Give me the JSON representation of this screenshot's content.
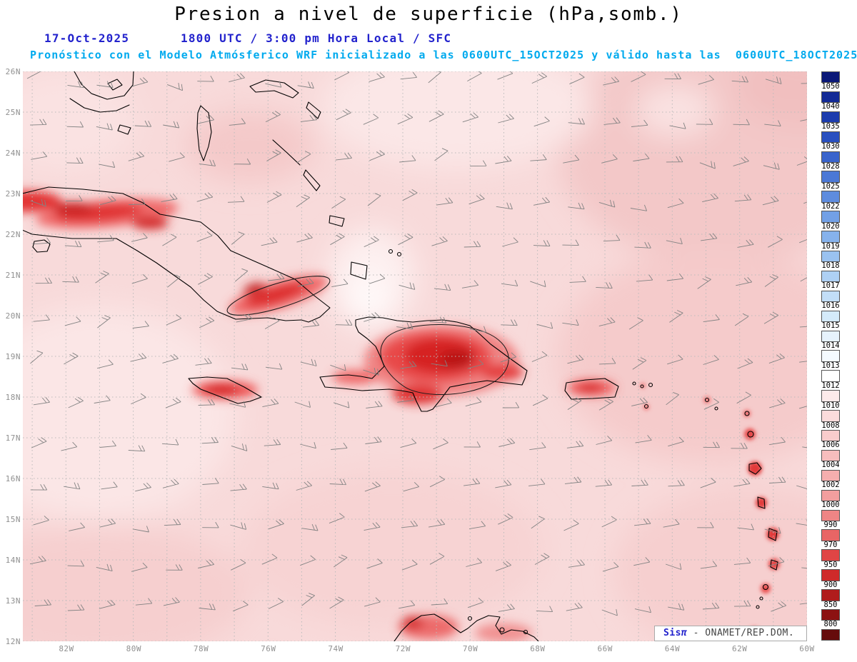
{
  "header": {
    "title": "Presion a nivel de superficie (hPa,somb.)",
    "date": "17-Oct-2025",
    "time_line": "1800 UTC / 3:00 pm Hora Local / SFC",
    "forecast_line": "Pronóstico con el Modelo Atmósferico WRF inicializado a las 0600UTC_15OCT2025 y válido hasta las  0600UTC_18OCT2025"
  },
  "map": {
    "lat_labels": [
      "26N",
      "25N",
      "24N",
      "23N",
      "22N",
      "21N",
      "20N",
      "19N",
      "18N",
      "17N",
      "16N",
      "15N",
      "14N",
      "13N",
      "12N"
    ],
    "lon_labels": [
      "82W",
      "80W",
      "78W",
      "76W",
      "74W",
      "72W",
      "70W",
      "68W",
      "66W",
      "64W",
      "62W",
      "60W"
    ],
    "features": [
      "coastlines",
      "wind-barbs",
      "dotted-graticule",
      "pressure-shading"
    ]
  },
  "legend": {
    "unit": "hPa",
    "values": [
      "1050",
      "1040",
      "1035",
      "1030",
      "1028",
      "1025",
      "1022",
      "1020",
      "1019",
      "1018",
      "1017",
      "1016",
      "1015",
      "1014",
      "1013",
      "1012",
      "1010",
      "1008",
      "1006",
      "1004",
      "1002",
      "1000",
      "990",
      "970",
      "950",
      "900",
      "850",
      "800"
    ],
    "colors": [
      "#0a1878",
      "#122a96",
      "#1c3cae",
      "#2950c0",
      "#3964cc",
      "#4b78d6",
      "#5e8cde",
      "#72a0e6",
      "#86b2ec",
      "#9ac2f0",
      "#aed0f4",
      "#c2def8",
      "#d4eafa",
      "#e6f2fc",
      "#f4faff",
      "#ffffff",
      "#fdeaea",
      "#fbdbdb",
      "#f9cccc",
      "#f7bdbd",
      "#f5aeae",
      "#f29e9e",
      "#ee8585",
      "#e86565",
      "#e04545",
      "#cf2a2a",
      "#b01c1c",
      "#8c1212",
      "#660b0b"
    ]
  },
  "attribution": {
    "brand": "Sis",
    "pi": "π",
    "text": "- ONAMET/REP.DOM."
  },
  "colors": {
    "header_blue": "#2323cd",
    "header_cyan": "#00aaee",
    "sea_shading": "#f8dada",
    "tick_gray": "#909090"
  }
}
